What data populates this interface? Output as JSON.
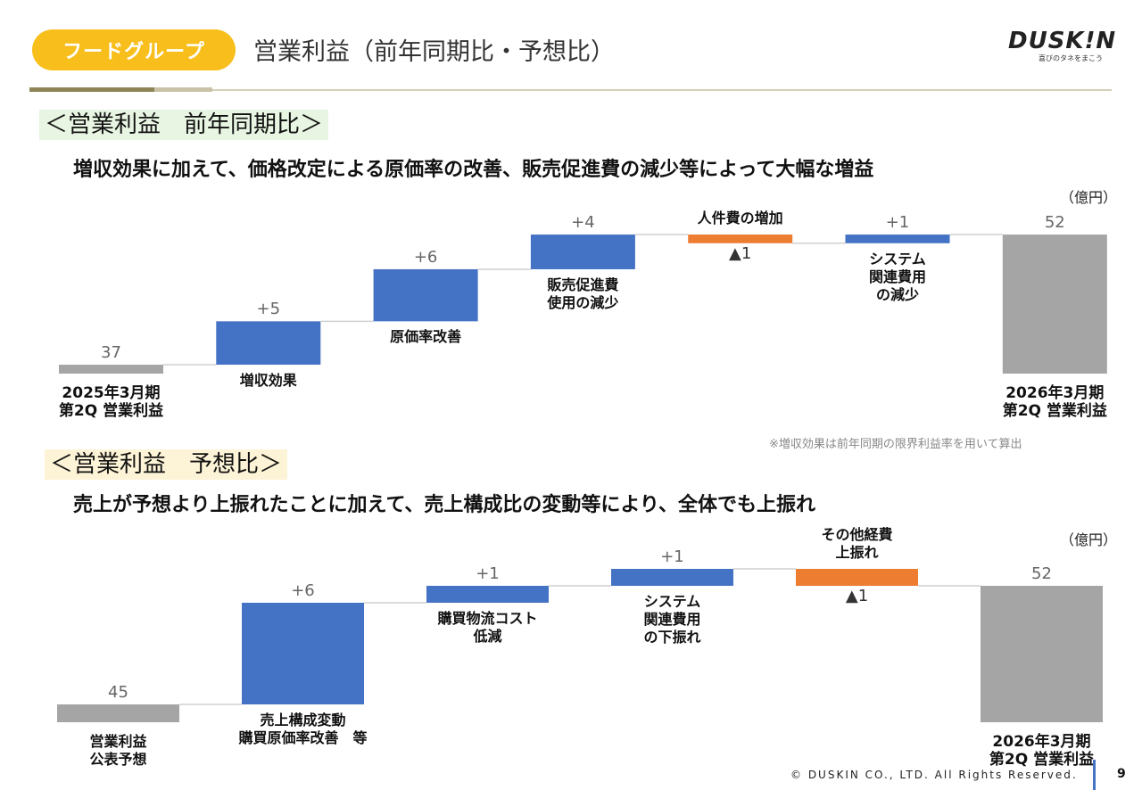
{
  "header": {
    "badge": "フードグループ",
    "title": "営業利益（前年同期比・予想比）",
    "logo_text": "DUSK!N",
    "logo_tagline": "喜びのタネをまこう"
  },
  "colors": {
    "increase": "#4472C4",
    "decrease": "#ED7D31",
    "total": "#A5A5A5",
    "badge": "#F8BE1B"
  },
  "section1": {
    "heading": "＜営業利益　前年同期比＞",
    "lead": "増収効果に加えて、価格改定による原価率の改善、販売促進費の減少等によって大幅な増益",
    "unit": "（億円）",
    "note": "※増収効果は前年同期の限界利益率を用いて算出"
  },
  "section2": {
    "heading": "＜営業利益　予想比＞",
    "lead": "売上が予想より上振れたことに加えて、売上構成比の変動等により、全体でも上振れ",
    "unit": "（億円）"
  },
  "chart_data": [
    {
      "type": "waterfall",
      "unit": "（億円）",
      "categories": [
        "2025年3月期\n第2Q 営業利益",
        "増収効果",
        "原価率改善",
        "販売促進費\n使用の減少",
        "人件費の増加",
        "システム\n関連費用\nの減少",
        "2026年3月期\n第2Q 営業利益"
      ],
      "kinds": [
        "total",
        "increase",
        "increase",
        "increase",
        "decrease",
        "increase",
        "total"
      ],
      "values": [
        37,
        5,
        6,
        4,
        -1,
        1,
        52
      ],
      "value_labels": [
        "37",
        "+5",
        "+6",
        "+4",
        "▲1",
        "+1",
        "52"
      ],
      "label_positions": [
        "below-axis",
        "below",
        "below",
        "below",
        "above",
        "below",
        "below-axis"
      ]
    },
    {
      "type": "waterfall",
      "unit": "（億円）",
      "categories": [
        "営業利益\n公表予想",
        "売上構成変動\n購買原価率改善　等",
        "購買物流コスト\n低減",
        "システム\n関連費用\nの下振れ",
        "その他経費\n上振れ",
        "2026年3月期\n第2Q 営業利益"
      ],
      "kinds": [
        "total",
        "increase",
        "increase",
        "increase",
        "decrease",
        "total"
      ],
      "values": [
        45,
        6,
        1,
        1,
        -1,
        52
      ],
      "value_labels": [
        "45",
        "+6",
        "+1",
        "+1",
        "▲1",
        "52"
      ],
      "label_positions": [
        "below-axis",
        "below",
        "below",
        "below",
        "above",
        "below-axis"
      ]
    }
  ],
  "footer": {
    "copyright": "© DUSKIN CO., LTD. All Rights Reserved.",
    "page": "9"
  }
}
